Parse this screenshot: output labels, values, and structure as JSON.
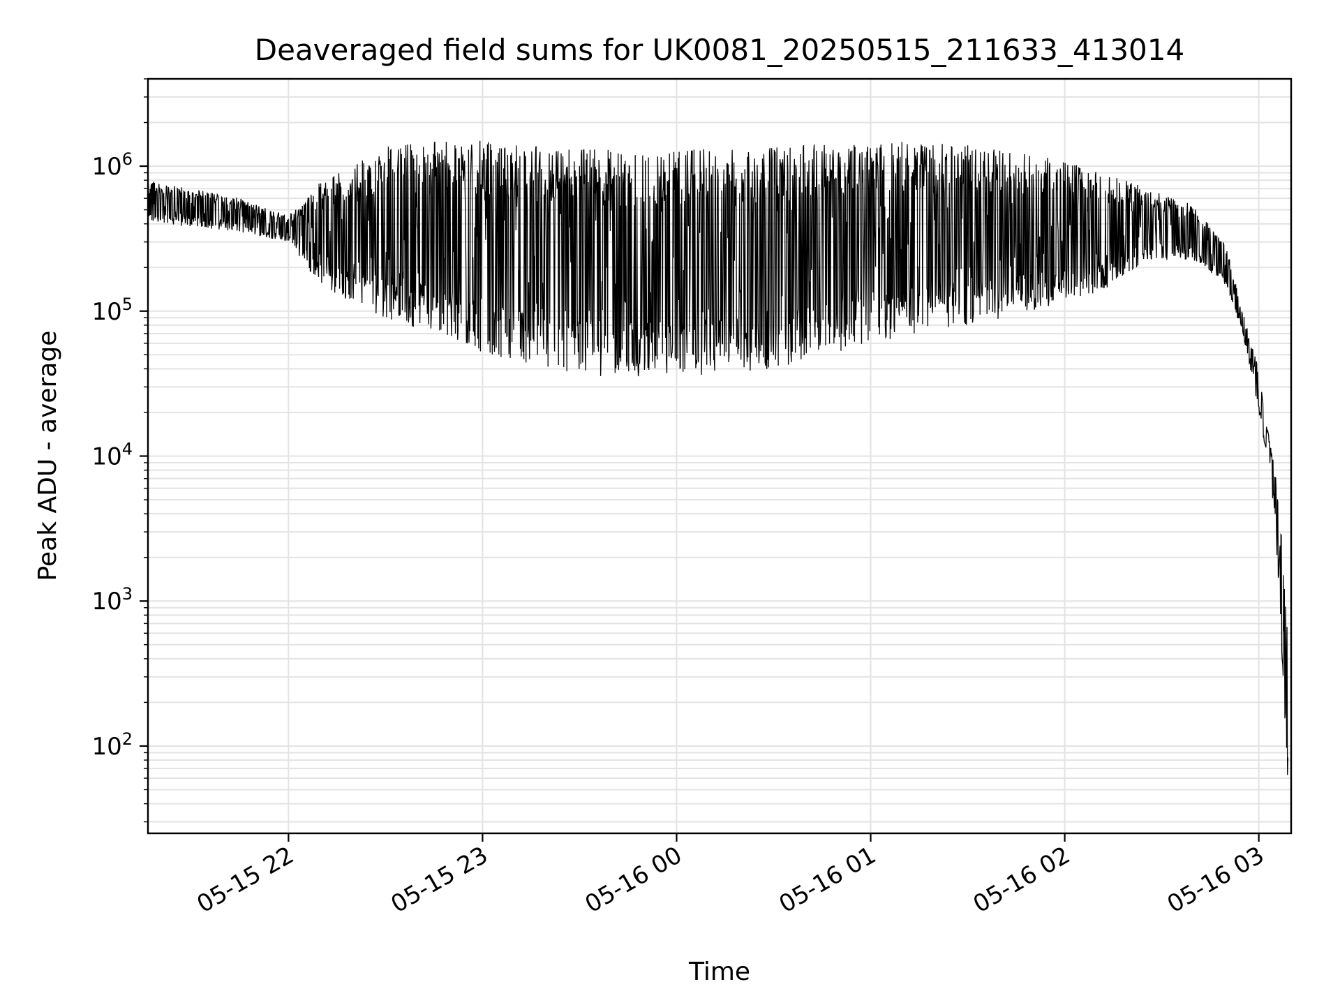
{
  "chart_data": {
    "type": "line",
    "title": "Deaveraged field sums for UK0081_20250515_211633_413014",
    "xlabel": "Time",
    "ylabel": "Peak ADU - average",
    "y_scale": "log",
    "ylim": [
      25,
      4000000
    ],
    "xlim": [
      "2025-05-15 21:16:33",
      "2025-05-16 03:10:00"
    ],
    "grid": true,
    "legend": "none",
    "x_ticks": [
      "2025-05-15 22:00",
      "2025-05-15 23:00",
      "2025-05-16 00:00",
      "2025-05-16 01:00",
      "2025-05-16 02:00",
      "2025-05-16 03:00"
    ],
    "x_tick_labels": [
      "05-15 22",
      "05-15 23",
      "05-16 00",
      "05-16 01",
      "05-16 02",
      "05-16 03"
    ],
    "y_ticks": [
      100,
      1000,
      10000,
      100000,
      1000000
    ],
    "y_tick_labels": [
      {
        "base": "10",
        "exp": "2"
      },
      {
        "base": "10",
        "exp": "3"
      },
      {
        "base": "10",
        "exp": "4"
      },
      {
        "base": "10",
        "exp": "5"
      },
      {
        "base": "10",
        "exp": "6"
      }
    ],
    "series": [
      {
        "color": "#000000",
        "envelope": {
          "x": [
            "2025-05-15 21:16:33",
            "2025-05-15 21:30",
            "2025-05-15 21:45",
            "2025-05-15 22:00",
            "2025-05-15 22:10",
            "2025-05-15 22:20",
            "2025-05-15 22:30",
            "2025-05-15 22:45",
            "2025-05-15 23:00",
            "2025-05-15 23:15",
            "2025-05-15 23:30",
            "2025-05-15 23:45",
            "2025-05-16 00:00",
            "2025-05-16 00:30",
            "2025-05-16 01:00",
            "2025-05-16 01:30",
            "2025-05-16 02:00",
            "2025-05-16 02:15",
            "2025-05-16 02:25",
            "2025-05-16 02:40",
            "2025-05-16 02:50",
            "2025-05-16 02:55",
            "2025-05-16 03:00",
            "2025-05-16 03:05",
            "2025-05-16 03:09"
          ],
          "high": [
            800000,
            700000,
            600000,
            450000,
            800000,
            1000000,
            1400000,
            1500000,
            1500000,
            1400000,
            1350000,
            1300000,
            1300000,
            1350000,
            1500000,
            1400000,
            1100000,
            900000,
            700000,
            550000,
            280000,
            100000,
            40000,
            8000,
            1000
          ],
          "low": [
            400000,
            380000,
            350000,
            300000,
            150000,
            110000,
            90000,
            70000,
            50000,
            40000,
            35000,
            35000,
            35000,
            40000,
            60000,
            80000,
            110000,
            150000,
            220000,
            220000,
            150000,
            70000,
            20000,
            4000,
            50
          ]
        }
      }
    ]
  }
}
